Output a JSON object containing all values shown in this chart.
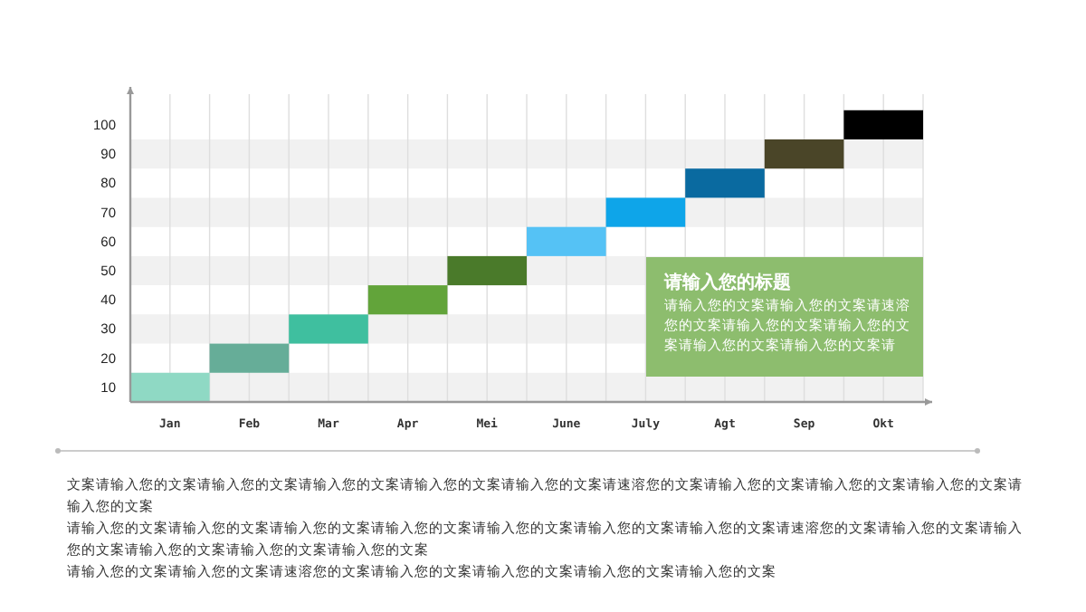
{
  "chart_data": {
    "type": "bar",
    "categories": [
      "Jan",
      "Feb",
      "Mar",
      "Apr",
      "Mei",
      "June",
      "July",
      "Agt",
      "Sep",
      "Okt"
    ],
    "base": [
      5,
      15,
      25,
      35,
      45,
      55,
      65,
      75,
      85,
      95
    ],
    "values": [
      10,
      10,
      10,
      10,
      10,
      10,
      10,
      10,
      10,
      10
    ],
    "colors": [
      "#8fd9c4",
      "#66ad98",
      "#3fbf9f",
      "#62a43a",
      "#4a7a2a",
      "#55c2f5",
      "#0ea5e9",
      "#0a6aa0",
      "#4a4528",
      "#000000"
    ],
    "ylim": [
      5,
      113
    ],
    "yticks": [
      10,
      20,
      30,
      40,
      50,
      60,
      70,
      80,
      90,
      100
    ],
    "grid": true,
    "annotations": [
      "请输入您的标题",
      "请输入您的文案请输入您的文案请速溶您的文案请输入您的文案请输入您的文案请输入您的文案请输入您的文案请",
      "文案请输入您的文案请输入您的文案请输入您的文案请输入您的文案请输入您的文案请速溶您的文案请输入您的文案请输入您的文案请输入您的文案请输入您的文案",
      "请输入您的文案请输入您的文案请输入您的文案请输入您的文案请输入您的文案请输入您的文案请输入您的文案请速溶您的文案请输入您的文案请输入您的文案请输入您的文案请输入您的文案请输入您的文案",
      "请输入您的文案请输入您的文案请速溶您的文案请输入您的文案请输入您的文案请输入您的文案请输入您的文案"
    ]
  }
}
